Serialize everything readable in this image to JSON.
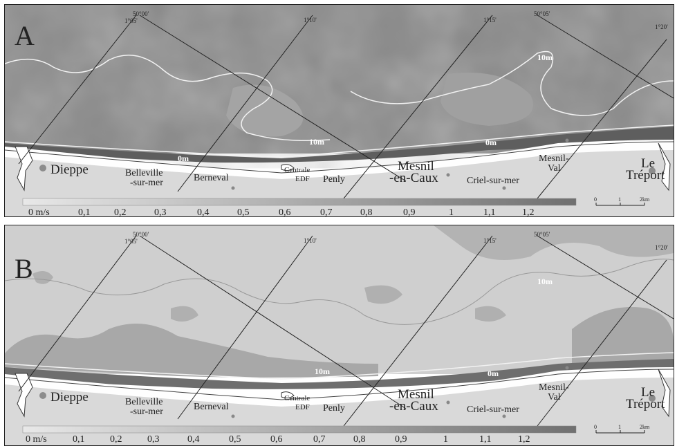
{
  "panels": [
    {
      "letter": "A",
      "bg_color": "#8c8c8c",
      "iso_labels": {
        "offshore": "10m",
        "mid": "10m",
        "shore_left": "0m",
        "shore_right": "0m"
      }
    },
    {
      "letter": "B",
      "bg_color": "#c8c8c8",
      "iso_labels": {
        "offshore": "10m",
        "mid": "10m",
        "shore_left": "",
        "shore_right": "0m"
      }
    }
  ],
  "grid_labels": {
    "lat_50_00": "50°00'",
    "lat_50_05": "50°05'",
    "lon_1_05": "1°05'",
    "lon_1_10": "1°10'",
    "lon_1_15": "1°15'",
    "lon_1_20": "1°20'"
  },
  "towns": {
    "dieppe": "Dieppe",
    "belleville_1": "Belleville",
    "belleville_2": "-sur-mer",
    "berneval": "Berneval",
    "centrale_1": "Centrale",
    "centrale_2": "EDF",
    "penly": "Penly",
    "mesnil_caux_1": "Mesnil",
    "mesnil_caux_2": "-en-Caux",
    "criel": "Criel-sur-mer",
    "mesnil_val_1": "Mesnil-",
    "mesnil_val_2": "Val",
    "treport_1": "Le",
    "treport_2": "Tréport"
  },
  "scale": {
    "ticks": [
      "0 m/s",
      "0,1",
      "0,2",
      "0,3",
      "0,4",
      "0,5",
      "0,6",
      "0,7",
      "0,8",
      "0,9",
      "1",
      "1,1",
      "1,2"
    ],
    "gradient_start": "#e8e8e8",
    "gradient_end": "#707070"
  },
  "km_scale": {
    "ticks": [
      "0",
      "1",
      "2km"
    ]
  }
}
